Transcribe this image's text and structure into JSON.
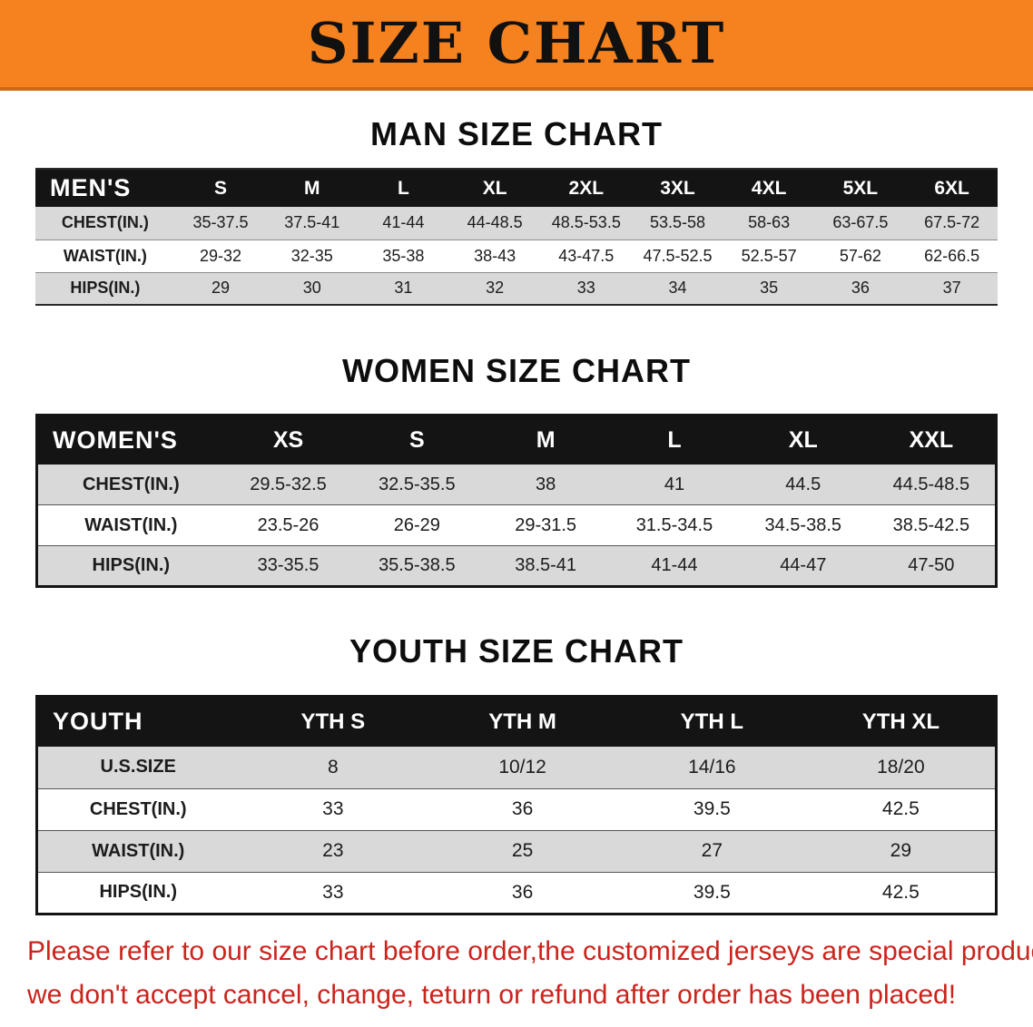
{
  "colors": {
    "banner_orange": "#F5821F",
    "header_black": "#141414",
    "row_gray": "#D9D9D9",
    "note_red": "#CB241C"
  },
  "banner": {
    "title": "SIZE CHART"
  },
  "sections": [
    {
      "id": "men",
      "heading": "MAN SIZE CHART",
      "table": {
        "corner_label": "MEN'S",
        "columns": [
          "S",
          "M",
          "L",
          "XL",
          "2XL",
          "3XL",
          "4XL",
          "5XL",
          "6XL"
        ],
        "rows": [
          {
            "label": "CHEST(IN.)",
            "values": [
              "35-37.5",
              "37.5-41",
              "41-44",
              "44-48.5",
              "48.5-53.5",
              "53.5-58",
              "58-63",
              "63-67.5",
              "67.5-72"
            ]
          },
          {
            "label": "WAIST(IN.)",
            "values": [
              "29-32",
              "32-35",
              "35-38",
              "38-43",
              "43-47.5",
              "47.5-52.5",
              "52.5-57",
              "57-62",
              "62-66.5"
            ]
          },
          {
            "label": "HIPS(IN.)",
            "values": [
              "29",
              "30",
              "31",
              "32",
              "33",
              "34",
              "35",
              "36",
              "37"
            ]
          }
        ]
      }
    },
    {
      "id": "women",
      "heading": "WOMEN SIZE CHART",
      "table": {
        "corner_label": "WOMEN'S",
        "columns": [
          "XS",
          "S",
          "M",
          "L",
          "XL",
          "XXL"
        ],
        "rows": [
          {
            "label": "CHEST(IN.)",
            "values": [
              "29.5-32.5",
              "32.5-35.5",
              "38",
              "41",
              "44.5",
              "44.5-48.5"
            ]
          },
          {
            "label": "WAIST(IN.)",
            "values": [
              "23.5-26",
              "26-29",
              "29-31.5",
              "31.5-34.5",
              "34.5-38.5",
              "38.5-42.5"
            ]
          },
          {
            "label": "HIPS(IN.)",
            "values": [
              "33-35.5",
              "35.5-38.5",
              "38.5-41",
              "41-44",
              "44-47",
              "47-50"
            ]
          }
        ]
      }
    },
    {
      "id": "youth",
      "heading": "YOUTH SIZE CHART",
      "table": {
        "corner_label": "YOUTH",
        "columns": [
          "YTH S",
          "YTH M",
          "YTH L",
          "YTH XL"
        ],
        "rows": [
          {
            "label": "U.S.SIZE",
            "values": [
              "8",
              "10/12",
              "14/16",
              "18/20"
            ]
          },
          {
            "label": "CHEST(IN.)",
            "values": [
              "33",
              "36",
              "39.5",
              "42.5"
            ]
          },
          {
            "label": "WAIST(IN.)",
            "values": [
              "23",
              "25",
              "27",
              "29"
            ]
          },
          {
            "label": "HIPS(IN.)",
            "values": [
              "33",
              "36",
              "39.5",
              "42.5"
            ]
          }
        ]
      }
    }
  ],
  "footer_note": {
    "lines": [
      "Please refer to our size chart before order,the customized jerseys are special products,",
      "we don't accept cancel, change, teturn or refund after order has been placed!"
    ]
  }
}
